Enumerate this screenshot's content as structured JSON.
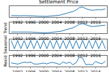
{
  "chart_data": [
    {
      "type": "line",
      "title": "Settlement Price",
      "color": "#1f77b4",
      "tick_labels": "x",
      "grid": false,
      "x": [
        1990,
        1991,
        1992,
        1993,
        1994,
        1995,
        1996,
        1997,
        1998,
        1999,
        2000,
        2001,
        2002,
        2003,
        2004,
        2005,
        2006,
        2007,
        2008,
        2009,
        2010,
        2011,
        2012,
        2013,
        2014,
        2015,
        2016,
        2017,
        2018,
        2019
      ],
      "values": [
        383,
        362,
        344,
        360,
        384,
        384,
        388,
        331,
        294,
        279,
        279,
        271,
        310,
        363,
        409,
        445,
        604,
        697,
        872,
        972,
        1225,
        1572,
        1669,
        1411,
        1266,
        1160,
        1251,
        1257,
        1268,
        1393
      ],
      "xlim": [
        1989.5,
        2019.5
      ],
      "xticks": [
        1992,
        1996,
        2000,
        2004,
        2008,
        2012,
        2016
      ],
      "ylim": [
        150,
        1800
      ]
    },
    {
      "type": "line",
      "y_label": "Trend",
      "color": "#1f77b4",
      "tick_labels": "x",
      "grid": false,
      "x": [
        1990,
        1991,
        1992,
        1993,
        1994,
        1995,
        1996,
        1997,
        1998,
        1999,
        2000,
        2001,
        2002,
        2003,
        2004,
        2005,
        2006,
        2007,
        2008,
        2009,
        2010,
        2011,
        2012,
        2013,
        2014,
        2015,
        2016,
        2017,
        2018,
        2019
      ],
      "values": [
        380,
        365,
        355,
        360,
        370,
        378,
        375,
        340,
        305,
        285,
        278,
        280,
        305,
        355,
        410,
        460,
        590,
        700,
        860,
        990,
        1220,
        1500,
        1610,
        1430,
        1280,
        1180,
        1230,
        1255,
        1275,
        1370
      ],
      "xlim": [
        1989.5,
        2019.5
      ],
      "xticks": [
        1992,
        1996,
        2000,
        2004,
        2008,
        2012,
        2016
      ],
      "ylim": [
        150,
        1750
      ]
    },
    {
      "type": "line",
      "y_label": "Seasonal",
      "color": "#1f77b4",
      "tick_labels": "x",
      "grid": false,
      "x": [
        1990,
        1991,
        1992,
        1993,
        1994,
        1995,
        1996,
        1997,
        1998,
        1999,
        2000,
        2001,
        2002,
        2003,
        2004,
        2005,
        2006,
        2007,
        2008,
        2009,
        2010,
        2011,
        2012,
        2013,
        2014,
        2015,
        2016,
        2017,
        2018,
        2019
      ],
      "values": [
        6,
        -6,
        6,
        -6,
        6,
        -6,
        6,
        -6,
        6,
        -6,
        6,
        -6,
        6,
        -6,
        6,
        -6,
        6,
        -6,
        6,
        -6,
        6,
        -6,
        6,
        -6,
        6,
        -6,
        6,
        -6,
        6,
        -6
      ],
      "xlim": [
        1989.5,
        2019.5
      ],
      "xticks": [
        1992,
        1996,
        2000,
        2004,
        2008,
        2012,
        2016
      ],
      "ylim": [
        -8,
        8
      ]
    },
    {
      "type": "line",
      "y_label": "Resid",
      "color": "#1f77b4",
      "tick_labels": "x",
      "grid": false,
      "x": [
        1990,
        1991,
        1992,
        1993,
        1994,
        1995,
        1996,
        1997,
        1998,
        1999,
        2000,
        2001,
        2002,
        2003,
        2004,
        2005,
        2006,
        2007,
        2008,
        2009,
        2010,
        2011,
        2012,
        2013,
        2014,
        2015,
        2016,
        2017,
        2018,
        2019
      ],
      "values": [
        3,
        -3,
        -11,
        0,
        14,
        6,
        13,
        -9,
        -11,
        -6,
        1,
        -9,
        5,
        8,
        -1,
        -15,
        14,
        -3,
        12,
        -18,
        5,
        72,
        59,
        -19,
        -14,
        -20,
        21,
        2,
        -7,
        23
      ],
      "xlim": [
        1989.5,
        2019.5
      ],
      "xticks": [
        1992,
        1996,
        2000,
        2004,
        2008,
        2012,
        2016
      ],
      "ylim": [
        -40,
        90
      ]
    }
  ]
}
